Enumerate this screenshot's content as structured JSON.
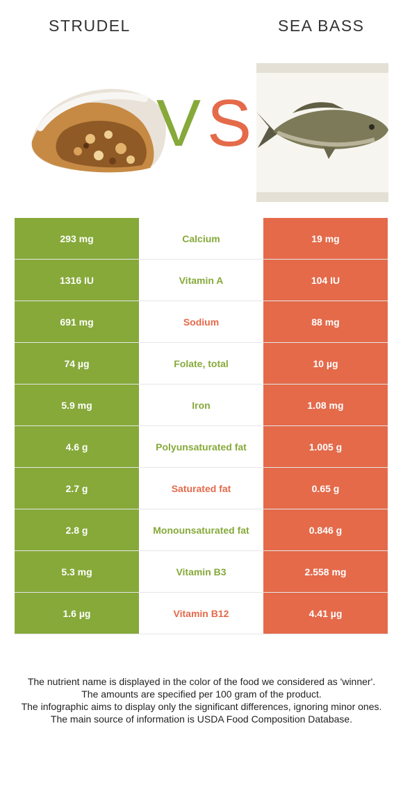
{
  "colors": {
    "winner_left": "#86a93a",
    "winner_right": "#e46a4a"
  },
  "left_food": {
    "name": "STRUDEL",
    "image_icon": "strudel-image"
  },
  "right_food": {
    "name": "SEA BASS",
    "image_icon": "sea-bass-fish-image"
  },
  "vs": {
    "v": "V",
    "s": "S"
  },
  "nutrients": [
    {
      "left": "293 mg",
      "name": "Calcium",
      "right": "19 mg",
      "winner": "left"
    },
    {
      "left": "1316 IU",
      "name": "Vitamin A",
      "right": "104 IU",
      "winner": "left"
    },
    {
      "left": "691 mg",
      "name": "Sodium",
      "right": "88 mg",
      "winner": "right"
    },
    {
      "left": "74 µg",
      "name": "Folate, total",
      "right": "10 µg",
      "winner": "left"
    },
    {
      "left": "5.9 mg",
      "name": "Iron",
      "right": "1.08 mg",
      "winner": "left"
    },
    {
      "left": "4.6 g",
      "name": "Polyunsaturated fat",
      "right": "1.005 g",
      "winner": "left"
    },
    {
      "left": "2.7 g",
      "name": "Saturated fat",
      "right": "0.65 g",
      "winner": "right"
    },
    {
      "left": "2.8 g",
      "name": "Monounsaturated fat",
      "right": "0.846 g",
      "winner": "left"
    },
    {
      "left": "5.3 mg",
      "name": "Vitamin B3",
      "right": "2.558 mg",
      "winner": "left"
    },
    {
      "left": "1.6 µg",
      "name": "Vitamin B12",
      "right": "4.41 µg",
      "winner": "right"
    }
  ],
  "footer": [
    "The nutrient name is displayed in the color of the food we considered as 'winner'.",
    "The amounts are specified per 100 gram of the product.",
    "The infographic aims to display only the significant differences, ignoring minor ones.",
    "The main source of information is USDA Food Composition Database."
  ]
}
